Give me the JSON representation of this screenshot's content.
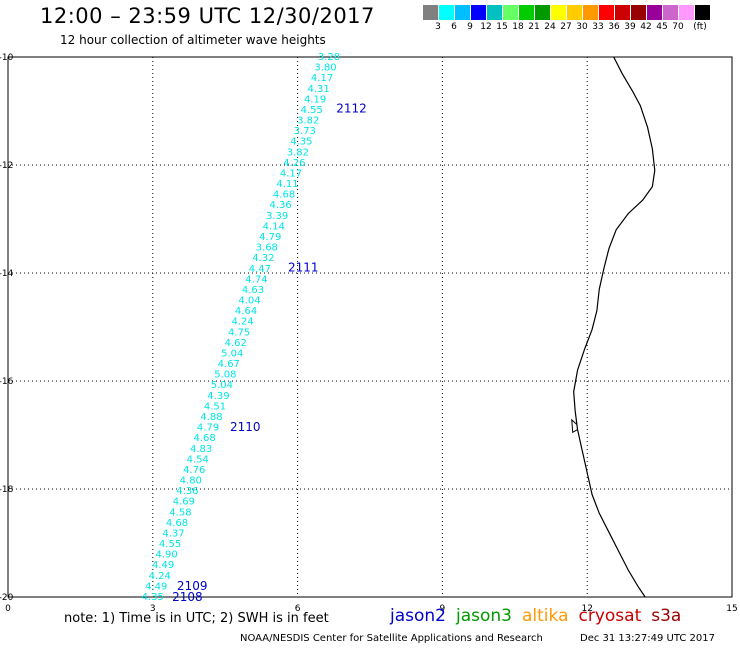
{
  "header": {
    "title": "12:00 – 23:59 UTC 12/30/2017",
    "subtitle": "12 hour collection of altimeter wave heights"
  },
  "color_scale": {
    "colors": [
      "#808080",
      "#00ffff",
      "#00bfff",
      "#0000ff",
      "#00c0c0",
      "#66ff66",
      "#00cc00",
      "#009900",
      "#ffff00",
      "#ffcc00",
      "#ff9900",
      "#ff0000",
      "#cc0000",
      "#990000",
      "#990099",
      "#cc66cc",
      "#ff99ff",
      "#000000"
    ],
    "labels": [
      "3",
      "6",
      "9",
      "12",
      "15",
      "18",
      "21",
      "24",
      "27",
      "30",
      "33",
      "36",
      "39",
      "42",
      "45",
      "70",
      "(ft)"
    ]
  },
  "map": {
    "x_ticks": [
      "0",
      "3",
      "6",
      "9",
      "12",
      "15"
    ],
    "y_ticks": [
      "-10",
      "-12",
      "-14",
      "-16",
      "-18",
      "-20"
    ],
    "track_color": "#00e5e5",
    "label_color": "#0000cc",
    "coast_color": "#000000",
    "pass_labels": [
      {
        "text": "2112",
        "lon": 6.8,
        "lat": -10.95
      },
      {
        "text": "2111",
        "lon": 5.8,
        "lat": -13.9
      },
      {
        "text": "2110",
        "lon": 4.6,
        "lat": -16.85
      },
      {
        "text": "2109",
        "lon": 3.5,
        "lat": -19.8
      },
      {
        "text": "2108",
        "lon": 3.4,
        "lat": -20.0
      }
    ],
    "wave_heights": [
      "3.28",
      "3.80",
      "4.17",
      "4.31",
      "4.19",
      "4.55",
      "3.82",
      "3.73",
      "4.35",
      "3.82",
      "4.26",
      "4.17",
      "4.11",
      "4.68",
      "4.36",
      "3.39",
      "4.14",
      "4.79",
      "3.68",
      "4.32",
      "4.47",
      "4.74",
      "4.63",
      "4.04",
      "4.64",
      "4.24",
      "4.75",
      "4.62",
      "5.04",
      "4.67",
      "5.08",
      "5.04",
      "4.39",
      "4.51",
      "4.88",
      "4.79",
      "4.68",
      "4.83",
      "4.54",
      "4.76",
      "4.80",
      "4.36",
      "4.69",
      "4.58",
      "4.68",
      "4.37",
      "4.55",
      "4.90",
      "4.49",
      "4.24",
      "4.49",
      "4.35"
    ]
  },
  "footer": {
    "note": "note:  1) Time is in UTC;  2) SWH is in feet",
    "missions": [
      {
        "name": "jason2",
        "color": "#0000cc"
      },
      {
        "name": "jason3",
        "color": "#009900"
      },
      {
        "name": "altika",
        "color": "#ff9900"
      },
      {
        "name": "cryosat",
        "color": "#cc0000"
      },
      {
        "name": "s3a",
        "color": "#990000"
      }
    ],
    "credit": "NOAA/NESDIS Center for Satellite Applications and Research",
    "timestamp": "Dec 31 13:27:49 UTC 2017"
  }
}
